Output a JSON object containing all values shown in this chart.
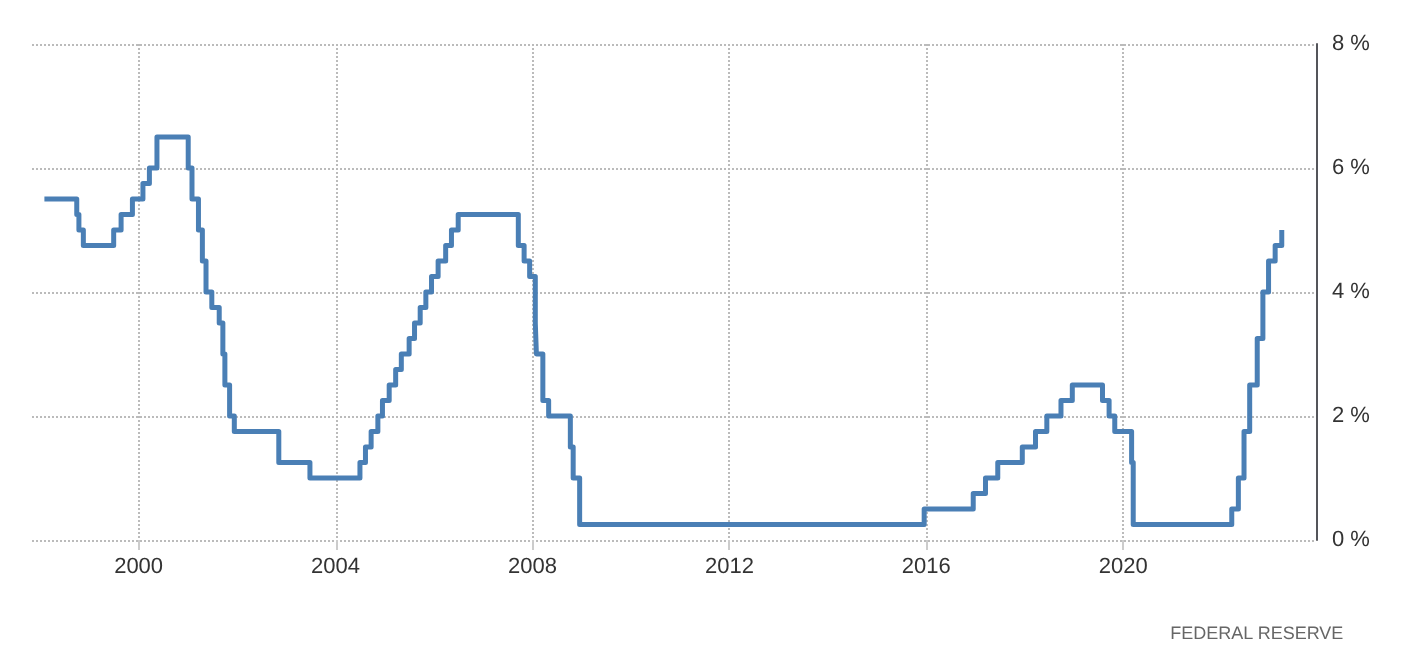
{
  "chart_data": {
    "type": "step",
    "x": [
      "1998-02-01",
      "1998-09-29",
      "1998-10-15",
      "1998-11-17",
      "1999-06-30",
      "1999-08-24",
      "1999-11-16",
      "2000-02-02",
      "2000-03-21",
      "2000-05-16",
      "2001-01-03",
      "2001-01-31",
      "2001-03-20",
      "2001-04-18",
      "2001-05-15",
      "2001-06-27",
      "2001-08-21",
      "2001-09-17",
      "2001-10-02",
      "2001-11-06",
      "2001-12-11",
      "2002-11-06",
      "2003-06-25",
      "2004-06-30",
      "2004-08-10",
      "2004-09-21",
      "2004-11-10",
      "2004-12-14",
      "2005-02-02",
      "2005-03-22",
      "2005-05-03",
      "2005-06-30",
      "2005-08-09",
      "2005-09-20",
      "2005-11-01",
      "2005-12-13",
      "2006-01-31",
      "2006-03-28",
      "2006-05-10",
      "2006-06-29",
      "2007-09-18",
      "2007-10-31",
      "2007-12-11",
      "2008-01-22",
      "2008-01-30",
      "2008-03-18",
      "2008-04-30",
      "2008-10-08",
      "2008-10-29",
      "2008-12-16",
      "2015-12-16",
      "2016-12-14",
      "2017-03-15",
      "2017-06-14",
      "2017-12-13",
      "2018-03-21",
      "2018-06-13",
      "2018-09-26",
      "2018-12-19",
      "2019-07-31",
      "2019-09-18",
      "2019-10-30",
      "2020-03-03",
      "2020-03-15",
      "2022-03-16",
      "2022-05-04",
      "2022-06-15",
      "2022-07-27",
      "2022-09-21",
      "2022-11-02",
      "2022-12-14",
      "2023-02-01",
      "2023-03-22",
      "2023-03-31"
    ],
    "series": [
      {
        "color": "#4a7fb5",
        "values": [
          5.5,
          5.25,
          5.0,
          4.75,
          5.0,
          5.25,
          5.5,
          5.75,
          6.0,
          6.5,
          6.0,
          5.5,
          5.0,
          4.5,
          4.0,
          3.75,
          3.5,
          3.0,
          2.5,
          2.0,
          1.75,
          1.25,
          1.0,
          1.25,
          1.5,
          1.75,
          2.0,
          2.25,
          2.5,
          2.75,
          3.0,
          3.25,
          3.5,
          3.75,
          4.0,
          4.25,
          4.5,
          4.75,
          5.0,
          5.25,
          4.75,
          4.5,
          4.25,
          3.5,
          3.0,
          2.25,
          2.0,
          1.5,
          1.0,
          0.25,
          0.5,
          0.75,
          1.0,
          1.25,
          1.5,
          1.75,
          2.0,
          2.25,
          2.5,
          2.25,
          2.0,
          1.75,
          1.25,
          0.25,
          0.5,
          1.0,
          1.75,
          2.5,
          3.25,
          4.0,
          4.5,
          4.75,
          5.0,
          5.0
        ]
      }
    ],
    "xlim": [
      "1997-11-01",
      "2023-12-01"
    ],
    "xticks": [
      "2000",
      "2004",
      "2008",
      "2012",
      "2016",
      "2020"
    ],
    "ylim": [
      0,
      8
    ],
    "yticks": [
      {
        "value": 0,
        "label": "0 %"
      },
      {
        "value": 2,
        "label": "2 %"
      },
      {
        "value": 4,
        "label": "4 %"
      },
      {
        "value": 6,
        "label": "6 %"
      },
      {
        "value": 8,
        "label": "8 %"
      }
    ],
    "grid": true,
    "marker": "none",
    "line_style": "solid",
    "annotations": [
      "FEDERAL RESERVE"
    ]
  }
}
